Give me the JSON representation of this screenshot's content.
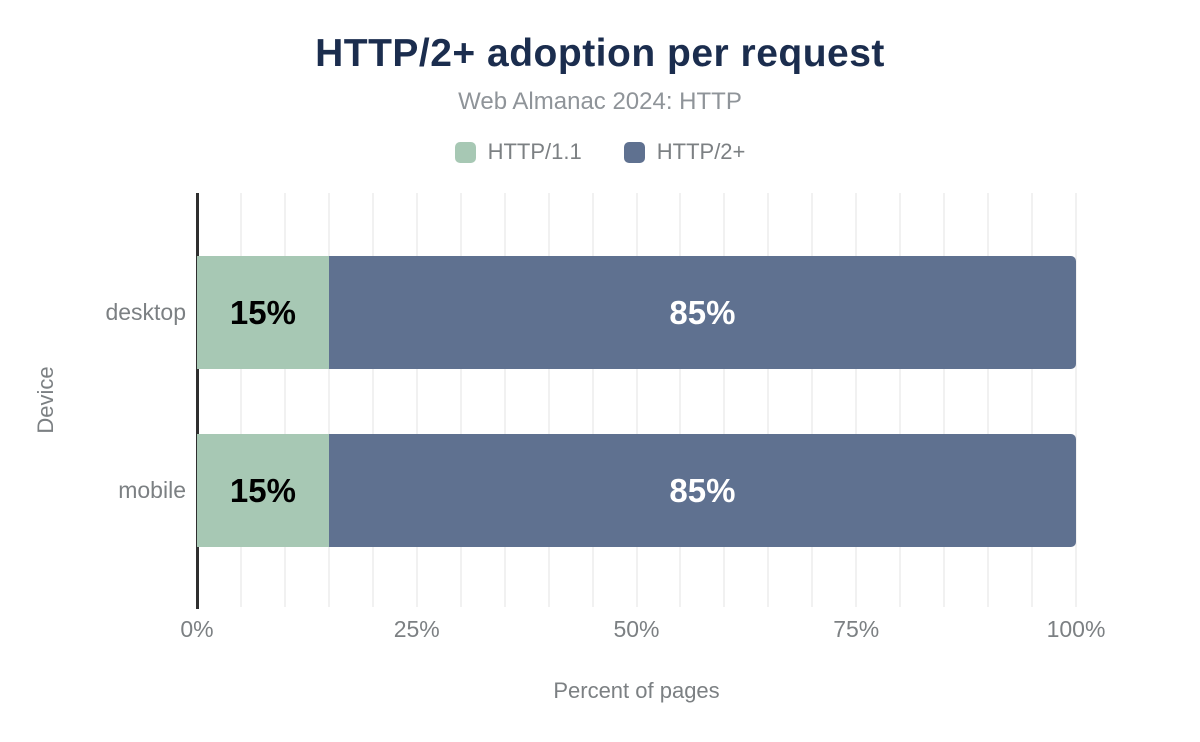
{
  "chart_data": {
    "type": "bar",
    "orientation": "horizontal",
    "stacked": true,
    "title": "HTTP/2+ adoption per request",
    "subtitle": "Web Almanac 2024: HTTP",
    "categories": [
      "desktop",
      "mobile"
    ],
    "series": [
      {
        "name": "HTTP/1.1",
        "color": "#a7c8b4",
        "label_color": "#000000",
        "values": [
          15,
          15
        ]
      },
      {
        "name": "HTTP/2+",
        "color": "#5f7190",
        "label_color": "#ffffff",
        "values": [
          85,
          85
        ]
      }
    ],
    "value_suffix": "%",
    "xlabel": "Percent of pages",
    "ylabel": "Device",
    "xlim": [
      0,
      100
    ],
    "xticks": [
      "0%",
      "25%",
      "50%",
      "75%",
      "100%"
    ],
    "grid": {
      "interval_percent": 5,
      "color": "#f1f1f1",
      "vertical": true
    },
    "legend_position": "top"
  },
  "colors": {
    "title": "#1b2d4e",
    "subtitle": "#8f9499",
    "text_gray": "#7c8083",
    "axis_line": "#2f2f2f",
    "background": "#ffffff"
  }
}
